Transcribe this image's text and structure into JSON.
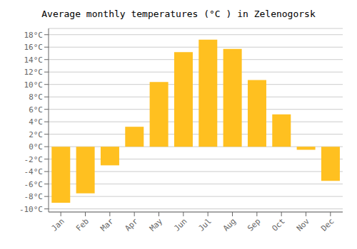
{
  "chart_data": {
    "type": "bar",
    "title": "Average monthly temperatures (°C ) in Zelenogorsk",
    "categories": [
      "Jan",
      "Feb",
      "Mar",
      "Apr",
      "May",
      "Jun",
      "Jul",
      "Aug",
      "Sep",
      "Oct",
      "Nov",
      "Dec"
    ],
    "values": [
      -9.0,
      -7.5,
      -3.0,
      3.2,
      10.4,
      15.2,
      17.2,
      15.7,
      10.7,
      5.2,
      -0.5,
      -5.5
    ],
    "color": "#FFC020",
    "ylim": [
      -10.5,
      19
    ],
    "yticks": [
      {
        "value": -10,
        "label": "-10°C"
      },
      {
        "value": -8,
        "label": "-8°C"
      },
      {
        "value": -6,
        "label": "-6°C"
      },
      {
        "value": -4,
        "label": "-4°C"
      },
      {
        "value": -2,
        "label": "-2°C"
      },
      {
        "value": 0,
        "label": "0°C"
      },
      {
        "value": 2,
        "label": "2°C"
      },
      {
        "value": 4,
        "label": "4°C"
      },
      {
        "value": 6,
        "label": "6°C"
      },
      {
        "value": 8,
        "label": "8°C"
      },
      {
        "value": 10,
        "label": "10°C"
      },
      {
        "value": 12,
        "label": "12°C"
      },
      {
        "value": 14,
        "label": "14°C"
      },
      {
        "value": 16,
        "label": "16°C"
      },
      {
        "value": 18,
        "label": "18°C"
      }
    ],
    "grid": true
  }
}
